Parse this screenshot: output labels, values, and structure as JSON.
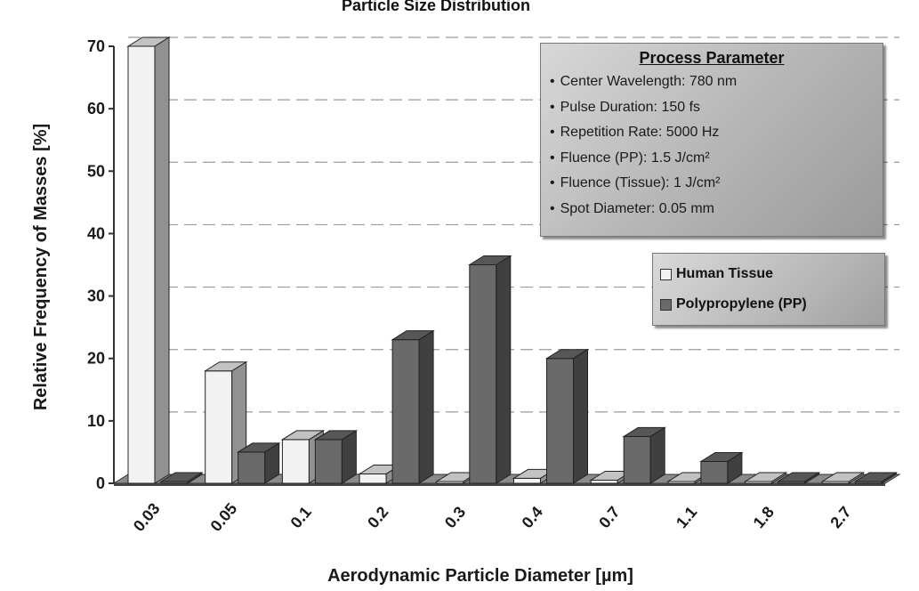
{
  "chart_data": {
    "type": "bar",
    "title": "Particle Size Distribution",
    "xlabel": "Aerodynamic Particle Diameter [µm]",
    "ylabel": "Relative Frequency of Masses [%]",
    "ylim": [
      0,
      70
    ],
    "yticks": [
      "0",
      "10",
      "20",
      "30",
      "40",
      "50",
      "60",
      "70"
    ],
    "categories": [
      "0.03",
      "0.05",
      "0.1",
      "0.2",
      "0.3",
      "0.4",
      "0.7",
      "1.1",
      "1.8",
      "2.7"
    ],
    "series": [
      {
        "name": "Human Tissue",
        "color": "#f2f2f2",
        "values": [
          70,
          18,
          7,
          1.5,
          0,
          0.8,
          0.5,
          0,
          0,
          0
        ]
      },
      {
        "name": "Polypropylene (PP)",
        "color": "#6a6a6a",
        "values": [
          0,
          5,
          7,
          23,
          35,
          20,
          7.5,
          3.5,
          0,
          0
        ]
      }
    ],
    "grid": "dashed horizontal",
    "legend_position": "right"
  },
  "process_box": {
    "title": "Process Parameter",
    "items": [
      "Center Wavelength: 780 nm",
      "Pulse Duration: 150 fs",
      "Repetition Rate: 5000 Hz",
      "Fluence (PP): 1.5 J/cm²",
      "Fluence (Tissue): 1 J/cm²",
      "Spot Diameter: 0.05 mm"
    ]
  }
}
